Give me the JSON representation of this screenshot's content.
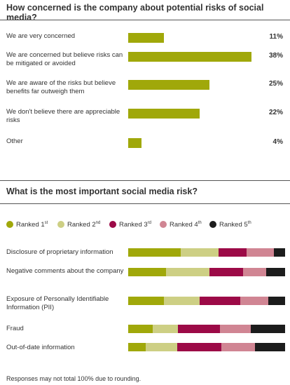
{
  "colors": {
    "rank1": "#a0a80a",
    "rank2": "#cdcf84",
    "rank3": "#9c0a47",
    "rank4": "#d08593",
    "rank5": "#1c1c1c"
  },
  "chart_data": [
    {
      "type": "bar",
      "title": "How concerned is the company about potential risks of social media?",
      "categories": [
        "We are very concerned",
        "We are concerned but believe risks can be mitigated or avoided",
        "We are aware of the risks but believe benefits far outweigh them",
        "We don't believe there are appreciable risks",
        "Other"
      ],
      "values": [
        11,
        38,
        25,
        22,
        4
      ],
      "value_labels": [
        "11%",
        "38%",
        "25%",
        "22%",
        "4%"
      ],
      "orientation": "horizontal",
      "xlim": [
        0,
        40
      ],
      "grid": false
    },
    {
      "type": "bar",
      "stacked": true,
      "orientation": "horizontal",
      "title": "What is the most important social media risk?",
      "legend": {
        "placement": "top",
        "entries": [
          {
            "base": "Ranked 1",
            "sup": "st"
          },
          {
            "base": "Ranked 2",
            "sup": "nd"
          },
          {
            "base": "Ranked 3",
            "sup": "rd"
          },
          {
            "base": "Ranked 4",
            "sup": "th"
          },
          {
            "base": "Ranked 5",
            "sup": "th"
          }
        ]
      },
      "categories": [
        "Disclosure of proprietary information",
        "Negative comments about the company",
        "Exposure of Personally Identifiable Information (PII)",
        "Fraud",
        "Out-of-date information"
      ],
      "series": [
        {
          "values": [
            34,
            24,
            23,
            16,
            11
          ]
        },
        {
          "values": [
            24,
            28,
            23,
            16,
            20
          ]
        },
        {
          "values": [
            18,
            21,
            26,
            27,
            28
          ]
        },
        {
          "values": [
            18,
            15,
            18,
            20,
            21
          ]
        },
        {
          "values": [
            7,
            12,
            11,
            22,
            19
          ]
        }
      ],
      "xlim": [
        0,
        100
      ],
      "grid": false
    }
  ],
  "footnote": "Responses may not total 100% due to rounding."
}
